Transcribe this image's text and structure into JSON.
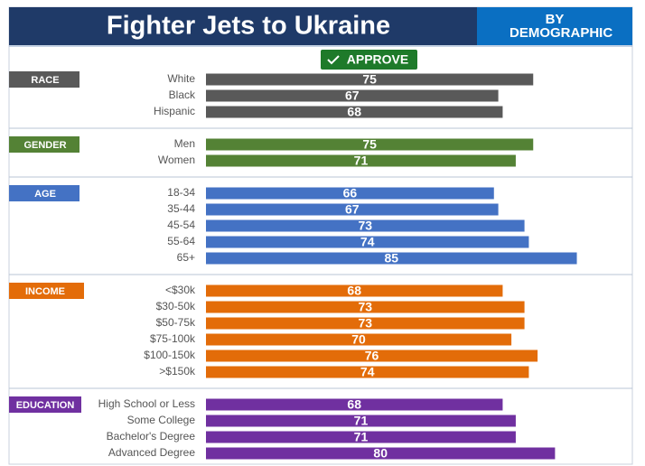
{
  "chart_data": {
    "type": "bar",
    "title": "Fighter Jets to Ukraine",
    "subtitle": "BY DEMOGRAPHIC",
    "legend": "APPROVE",
    "legend_color": "#1e7a2a",
    "groups": [
      {
        "name": "RACE",
        "color": "#595959",
        "categories": [
          "White",
          "Black",
          "Hispanic"
        ],
        "values": [
          75,
          67,
          68
        ]
      },
      {
        "name": "GENDER",
        "color": "#548235",
        "categories": [
          "Men",
          "Women"
        ],
        "values": [
          75,
          71
        ]
      },
      {
        "name": "AGE",
        "color": "#4472c4",
        "categories": [
          "18-34",
          "35-44",
          "45-54",
          "55-64",
          "65+"
        ],
        "values": [
          66,
          67,
          73,
          74,
          85
        ]
      },
      {
        "name": "INCOME",
        "color": "#e36c09",
        "categories": [
          "<$30k",
          "$30-50k",
          "$50-75k",
          "$75-100k",
          "$100-150k",
          ">$150k"
        ],
        "values": [
          68,
          73,
          73,
          70,
          76,
          74
        ]
      },
      {
        "name": "EDUCATION",
        "color": "#7030a0",
        "categories": [
          "High School or Less",
          "Some College",
          "Bachelor's Degree",
          "Advanced Degree"
        ],
        "values": [
          68,
          71,
          71,
          80
        ]
      }
    ]
  }
}
